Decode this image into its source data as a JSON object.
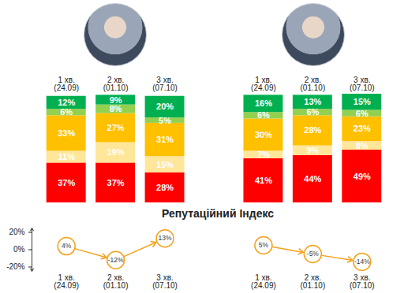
{
  "chart_data": [
    {
      "type": "bar",
      "stacked": true,
      "data_labels": true,
      "tick_labels": "x",
      "categories": [
        "1 хв.\n(24.09)",
        "2 хв.\n(01.10)",
        "3 хв.\n(07.10)"
      ],
      "ylim": [
        0,
        101
      ],
      "yticks": [],
      "series": [
        {
          "color": "#ff0000",
          "values": [
            37,
            37,
            28
          ],
          "value_labels": [
            "37%",
            "37%",
            "28%"
          ]
        },
        {
          "color": "#ffe699",
          "values": [
            11,
            19,
            15
          ],
          "value_labels": [
            "11%",
            "19%",
            "15%"
          ]
        },
        {
          "color": "#ffc000",
          "values": [
            33,
            27,
            31
          ],
          "value_labels": [
            "33%",
            "27%",
            "31%"
          ]
        },
        {
          "color": "#92d050",
          "values": [
            6,
            8,
            5
          ],
          "value_labels": [
            "6%",
            "8%",
            "5%"
          ]
        },
        {
          "color": "#00b050",
          "values": [
            12,
            9,
            20
          ],
          "value_labels": [
            "12%",
            "9%",
            "20%"
          ]
        }
      ]
    },
    {
      "type": "bar",
      "stacked": true,
      "data_labels": true,
      "tick_labels": "x",
      "categories": [
        "1 хв.\n(24.09)",
        "2 хв.\n(01.10)",
        "3 хв.\n(07.10)"
      ],
      "ylim": [
        0,
        101
      ],
      "yticks": [],
      "series": [
        {
          "color": "#ff0000",
          "values": [
            41,
            44,
            49
          ],
          "value_labels": [
            "41%",
            "44%",
            "49%"
          ]
        },
        {
          "color": "#ffe699",
          "values": [
            7,
            9,
            8
          ],
          "value_labels": [
            "7%",
            "9%",
            "8%"
          ]
        },
        {
          "color": "#ffc000",
          "values": [
            30,
            28,
            23
          ],
          "value_labels": [
            "30%",
            "28%",
            "23%"
          ]
        },
        {
          "color": "#92d050",
          "values": [
            6,
            6,
            6
          ],
          "value_labels": [
            "6%",
            "6%",
            "6%"
          ]
        },
        {
          "color": "#00b050",
          "values": [
            16,
            13,
            15
          ],
          "value_labels": [
            "16%",
            "13%",
            "15%"
          ]
        }
      ]
    },
    {
      "type": "line",
      "title": "Репутаційний Індекс",
      "data_labels": true,
      "grid": false,
      "marker": "circle",
      "line_style": "solid",
      "categories": [
        "1 хв.\n(24.09)",
        "2 хв.\n(01.10)",
        "3 хв.\n(07.10)"
      ],
      "ylim": [
        -25,
        25
      ],
      "yticks": [
        {
          "value": 20,
          "label": "20%"
        },
        {
          "value": 0,
          "label": "0%"
        },
        {
          "value": -20,
          "label": "-20%"
        }
      ],
      "series": [
        {
          "color": "#f5a11c",
          "values": [
            4,
            -12,
            13
          ],
          "value_labels": [
            "4%",
            "-12%",
            "13%"
          ]
        },
        {
          "color": "#f5a11c",
          "values": [
            5,
            -5,
            -14
          ],
          "value_labels": [
            "5%",
            "-5%",
            "-14%"
          ]
        }
      ]
    }
  ]
}
